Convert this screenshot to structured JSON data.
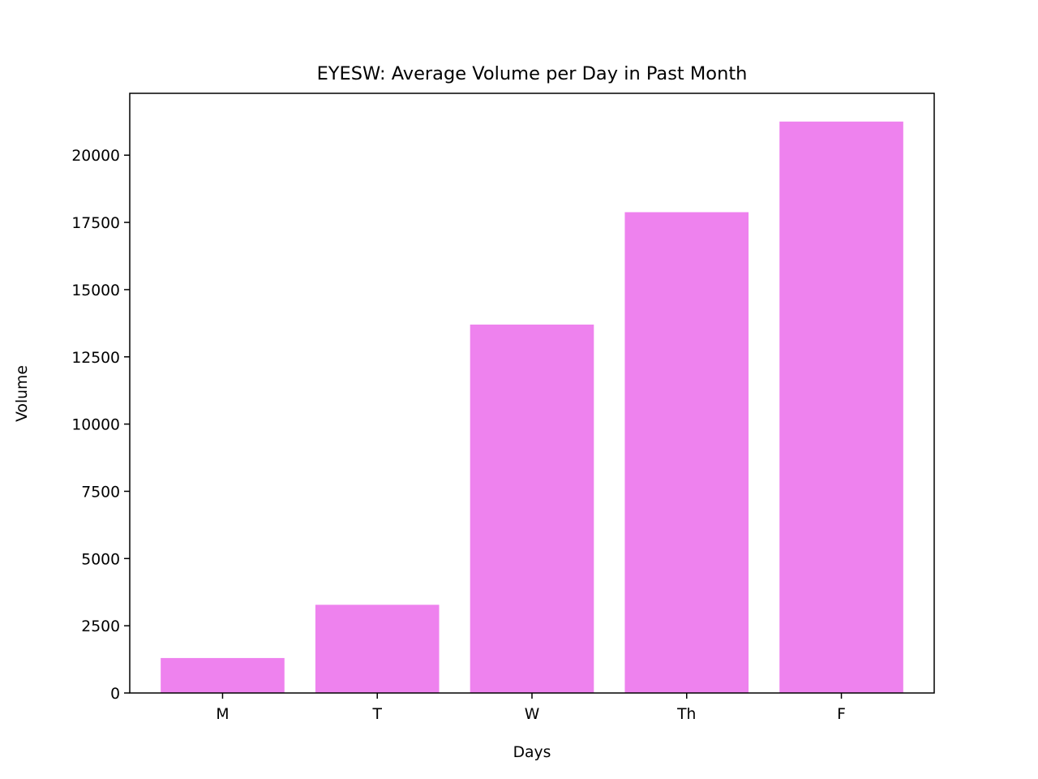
{
  "chart_data": {
    "type": "bar",
    "title": "EYESW: Average Volume per Day in Past Month",
    "xlabel": "Days",
    "ylabel": "Volume",
    "categories": [
      "M",
      "T",
      "W",
      "Th",
      "F"
    ],
    "values": [
      1300,
      3280,
      13700,
      17880,
      21250
    ],
    "ylim": [
      0,
      22300
    ],
    "yticks": [
      0,
      2500,
      5000,
      7500,
      10000,
      12500,
      15000,
      17500,
      20000
    ],
    "bar_color": "#ee82ee",
    "grid": false,
    "legend": "none"
  }
}
